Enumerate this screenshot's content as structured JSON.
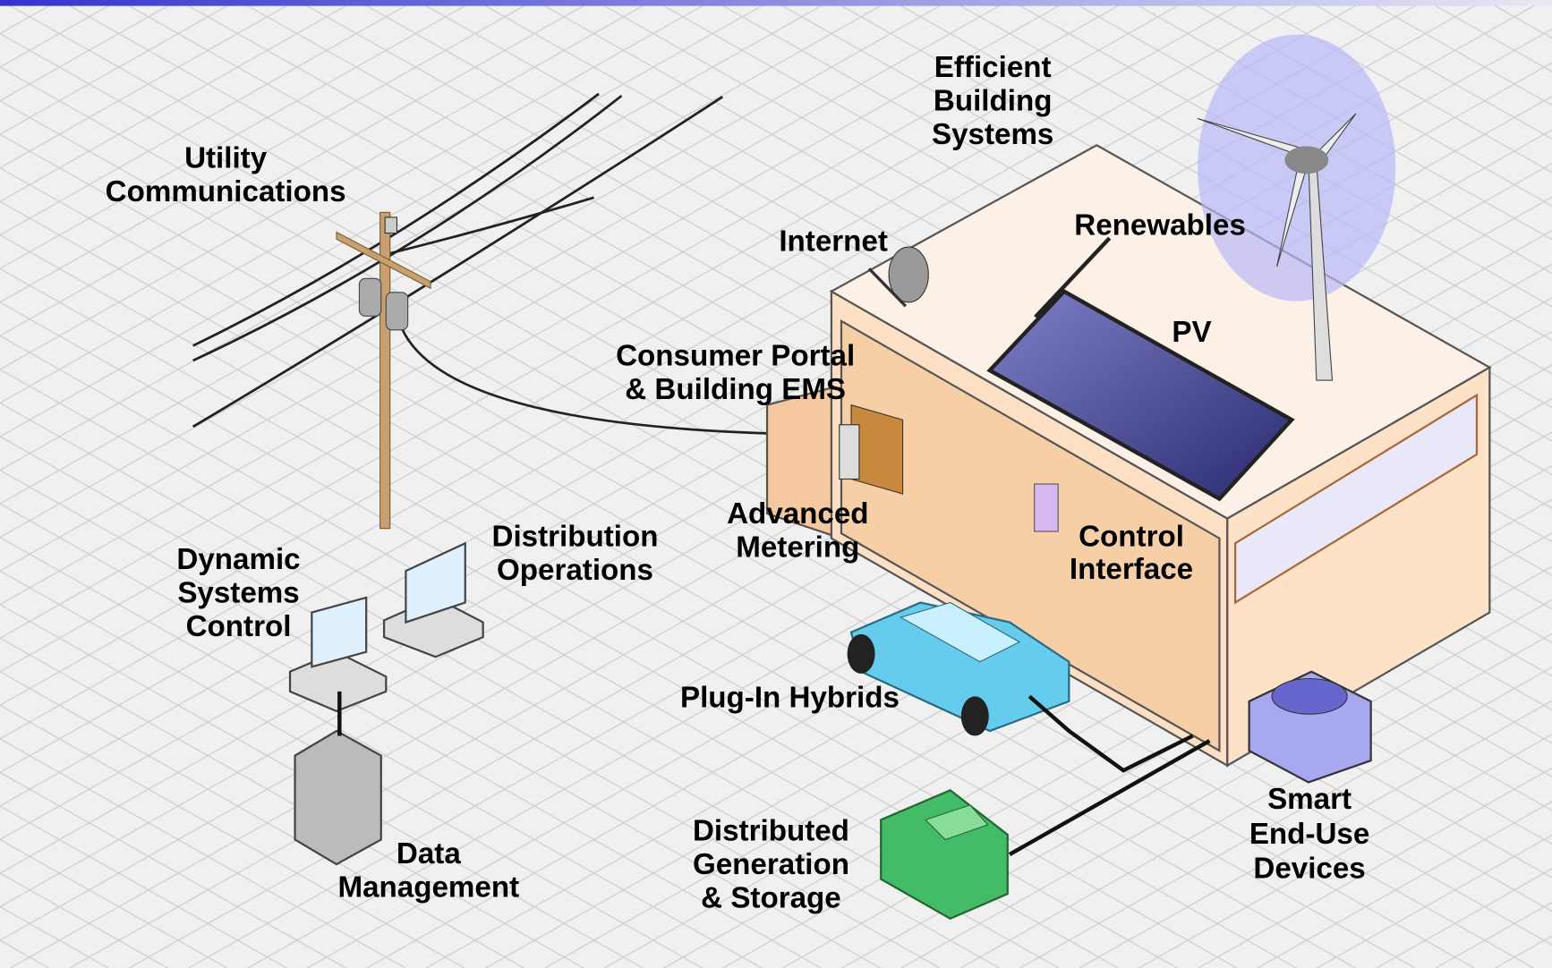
{
  "labels": [
    {
      "lines": [
        "Utility",
        "Communications"
      ]
    },
    {
      "lines": [
        "Efficient",
        "Building",
        "Systems"
      ]
    },
    {
      "lines": [
        "Internet"
      ]
    },
    {
      "lines": [
        "Renewables"
      ]
    },
    {
      "lines": [
        "PV"
      ]
    },
    {
      "lines": [
        "Consumer Portal",
        "& Building EMS"
      ]
    },
    {
      "lines": [
        "Advanced",
        "Metering"
      ]
    },
    {
      "lines": [
        "Control",
        "Interface"
      ]
    },
    {
      "lines": [
        "Distribution",
        "Operations"
      ]
    },
    {
      "lines": [
        "Dynamic",
        "Systems",
        "Control"
      ]
    },
    {
      "lines": [
        "Plug-In Hybrids"
      ]
    },
    {
      "lines": [
        "Smart",
        "End-Use",
        "Devices"
      ]
    },
    {
      "lines": [
        "Data",
        "Management"
      ]
    },
    {
      "lines": [
        "Distributed",
        "Generation",
        "& Storage"
      ]
    }
  ]
}
